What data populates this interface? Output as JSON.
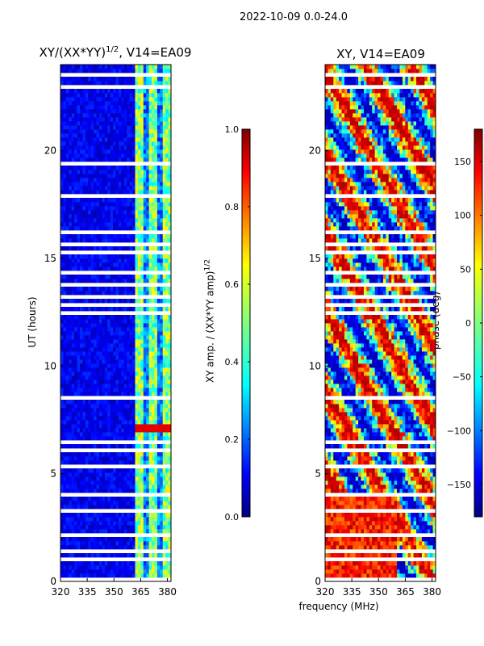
{
  "suptitle": "2022-10-09 0.0-24.0",
  "chart_data": [
    {
      "type": "heatmap",
      "title_main": "XY/(XX*YY)",
      "title_sup": "1/2",
      "title_tail": ", V14=EA09",
      "xlabel": "",
      "ylabel": "UT (hours)",
      "xlim": [
        320,
        382
      ],
      "ylim": [
        0,
        24
      ],
      "xticks": [
        320,
        335,
        350,
        365,
        380
      ],
      "yticks": [
        0,
        5,
        10,
        15,
        20
      ],
      "colorbar": {
        "label_main": "XY amp. / (XX*YY amp)",
        "label_sup": "1/2",
        "range": [
          0.0,
          1.0
        ],
        "ticks": [
          "0.0",
          "0.2",
          "0.4",
          "0.6",
          "0.8",
          "1.0"
        ],
        "tick_values": [
          0.0,
          0.2,
          0.4,
          0.6,
          0.8,
          1.0
        ]
      }
    },
    {
      "type": "heatmap",
      "title": "XY, V14=EA09",
      "xlabel": "frequency (MHz)",
      "ylabel": "",
      "xlim": [
        320,
        382
      ],
      "ylim": [
        0,
        24
      ],
      "xticks": [
        320,
        335,
        350,
        365,
        380
      ],
      "yticks": [
        0,
        5,
        10,
        15,
        20
      ],
      "colorbar": {
        "label": "phase (deg)",
        "range": [
          -180,
          180
        ],
        "ticks": [
          "−150",
          "−100",
          "−50",
          "0",
          "50",
          "100",
          "150"
        ],
        "tick_values": [
          -150,
          -100,
          -50,
          0,
          50,
          100,
          150
        ]
      }
    }
  ],
  "colors": {
    "jet": [
      "#00007f",
      "#0000ff",
      "#007fff",
      "#00ffff",
      "#7fff7f",
      "#ffff00",
      "#ff7f00",
      "#ff0000",
      "#7f0000"
    ],
    "axis": "#000000",
    "background": "#ffffff"
  }
}
